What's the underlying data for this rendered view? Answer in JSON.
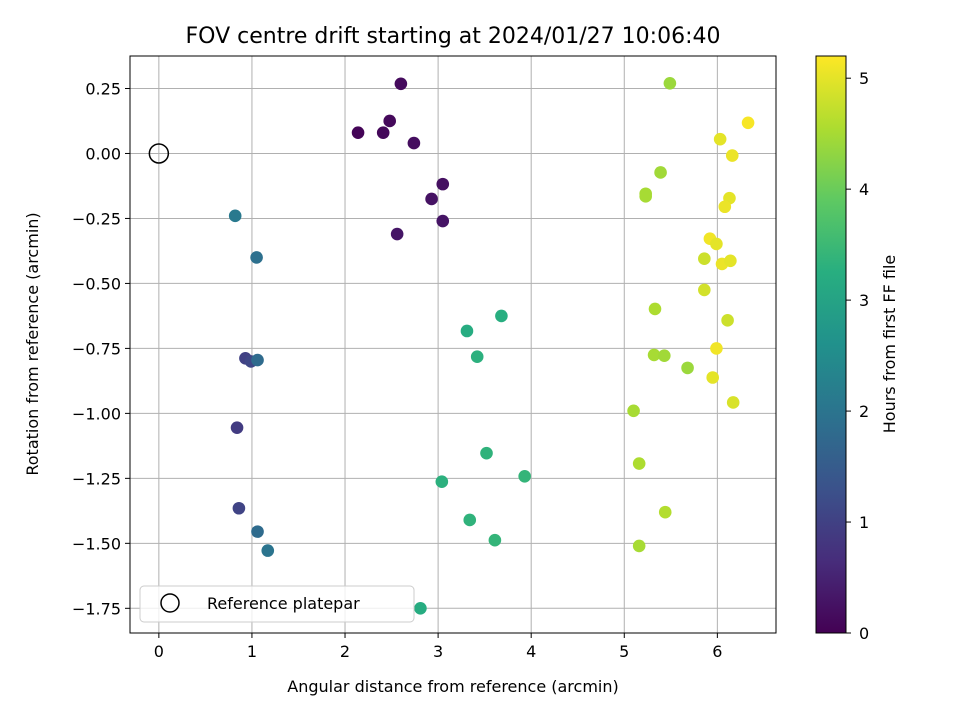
{
  "chart_data": {
    "type": "scatter",
    "title": "FOV centre drift starting at 2024/01/27 10:06:40",
    "xlabel": "Angular distance from reference (arcmin)",
    "ylabel": "Rotation from reference (arcmin)",
    "xlim": [
      -0.31,
      6.63
    ],
    "ylim": [
      -1.845,
      0.375
    ],
    "xticks": [
      0,
      1,
      2,
      3,
      4,
      5,
      6
    ],
    "xtick_labels": [
      "0",
      "1",
      "2",
      "3",
      "4",
      "5",
      "6"
    ],
    "yticks": [
      0.25,
      0.0,
      -0.25,
      -0.5,
      -0.75,
      -1.0,
      -1.25,
      -1.5,
      -1.75
    ],
    "ytick_labels": [
      "0.25",
      "0.00",
      "−0.25",
      "−0.50",
      "−0.75",
      "−1.00",
      "−1.25",
      "−1.50",
      "−1.75"
    ],
    "grid": true,
    "colormap": "viridis",
    "colorbar": {
      "label": "Hours from first FF file",
      "range": [
        0,
        5.2
      ],
      "ticks": [
        0,
        1,
        2,
        3,
        4,
        5
      ],
      "tick_labels": [
        "0",
        "1",
        "2",
        "3",
        "4",
        "5"
      ]
    },
    "reference": {
      "x": 0.0,
      "y": 0.0,
      "label": "Reference platepar"
    },
    "legend": {
      "position": "lower left",
      "entries": [
        "Reference platepar"
      ]
    },
    "points": [
      {
        "x": 2.14,
        "y": 0.08,
        "t": 0.05
      },
      {
        "x": 2.41,
        "y": 0.08,
        "t": 0.1
      },
      {
        "x": 2.48,
        "y": 0.125,
        "t": 0.12
      },
      {
        "x": 2.6,
        "y": 0.268,
        "t": 0.15
      },
      {
        "x": 2.74,
        "y": 0.04,
        "t": 0.18
      },
      {
        "x": 3.05,
        "y": -0.118,
        "t": 0.22
      },
      {
        "x": 2.93,
        "y": -0.175,
        "t": 0.25
      },
      {
        "x": 3.05,
        "y": -0.26,
        "t": 0.28
      },
      {
        "x": 2.56,
        "y": -0.31,
        "t": 0.3
      },
      {
        "x": 0.93,
        "y": -0.788,
        "t": 1.0
      },
      {
        "x": 0.99,
        "y": -0.8,
        "t": 1.1
      },
      {
        "x": 0.84,
        "y": -1.055,
        "t": 0.9
      },
      {
        "x": 0.86,
        "y": -1.365,
        "t": 1.05
      },
      {
        "x": 1.06,
        "y": -0.795,
        "t": 1.8
      },
      {
        "x": 1.05,
        "y": -0.4,
        "t": 1.9
      },
      {
        "x": 0.82,
        "y": -0.24,
        "t": 2.1
      },
      {
        "x": 1.06,
        "y": -1.455,
        "t": 1.8
      },
      {
        "x": 1.17,
        "y": -1.528,
        "t": 2.0
      },
      {
        "x": 3.31,
        "y": -0.683,
        "t": 3.2
      },
      {
        "x": 3.68,
        "y": -0.625,
        "t": 3.25
      },
      {
        "x": 3.42,
        "y": -0.782,
        "t": 3.3
      },
      {
        "x": 3.52,
        "y": -1.153,
        "t": 3.35
      },
      {
        "x": 3.93,
        "y": -1.242,
        "t": 3.4
      },
      {
        "x": 3.04,
        "y": -1.263,
        "t": 3.3
      },
      {
        "x": 3.34,
        "y": -1.41,
        "t": 3.35
      },
      {
        "x": 3.61,
        "y": -1.488,
        "t": 3.4
      },
      {
        "x": 2.81,
        "y": -1.75,
        "t": 3.2
      },
      {
        "x": 5.49,
        "y": 0.27,
        "t": 4.4
      },
      {
        "x": 5.39,
        "y": -0.073,
        "t": 4.45
      },
      {
        "x": 5.23,
        "y": -0.155,
        "t": 4.5
      },
      {
        "x": 5.23,
        "y": -0.165,
        "t": 4.5
      },
      {
        "x": 5.33,
        "y": -0.598,
        "t": 4.55
      },
      {
        "x": 5.32,
        "y": -0.775,
        "t": 4.5
      },
      {
        "x": 5.43,
        "y": -0.778,
        "t": 4.45
      },
      {
        "x": 5.68,
        "y": -0.825,
        "t": 4.4
      },
      {
        "x": 5.1,
        "y": -0.99,
        "t": 4.5
      },
      {
        "x": 5.16,
        "y": -1.193,
        "t": 4.55
      },
      {
        "x": 5.44,
        "y": -1.38,
        "t": 4.6
      },
      {
        "x": 5.16,
        "y": -1.51,
        "t": 4.5
      },
      {
        "x": 6.03,
        "y": 0.055,
        "t": 5.0
      },
      {
        "x": 6.33,
        "y": 0.118,
        "t": 5.15
      },
      {
        "x": 6.16,
        "y": -0.008,
        "t": 5.05
      },
      {
        "x": 6.13,
        "y": -0.172,
        "t": 5.0
      },
      {
        "x": 6.08,
        "y": -0.205,
        "t": 5.05
      },
      {
        "x": 5.92,
        "y": -0.328,
        "t": 5.1
      },
      {
        "x": 5.99,
        "y": -0.348,
        "t": 5.0
      },
      {
        "x": 5.86,
        "y": -0.405,
        "t": 4.8
      },
      {
        "x": 6.05,
        "y": -0.425,
        "t": 5.05
      },
      {
        "x": 6.14,
        "y": -0.413,
        "t": 5.0
      },
      {
        "x": 5.86,
        "y": -0.525,
        "t": 4.85
      },
      {
        "x": 6.11,
        "y": -0.642,
        "t": 4.8
      },
      {
        "x": 5.99,
        "y": -0.75,
        "t": 5.1
      },
      {
        "x": 5.95,
        "y": -0.862,
        "t": 5.0
      },
      {
        "x": 6.17,
        "y": -0.958,
        "t": 4.9
      }
    ]
  }
}
